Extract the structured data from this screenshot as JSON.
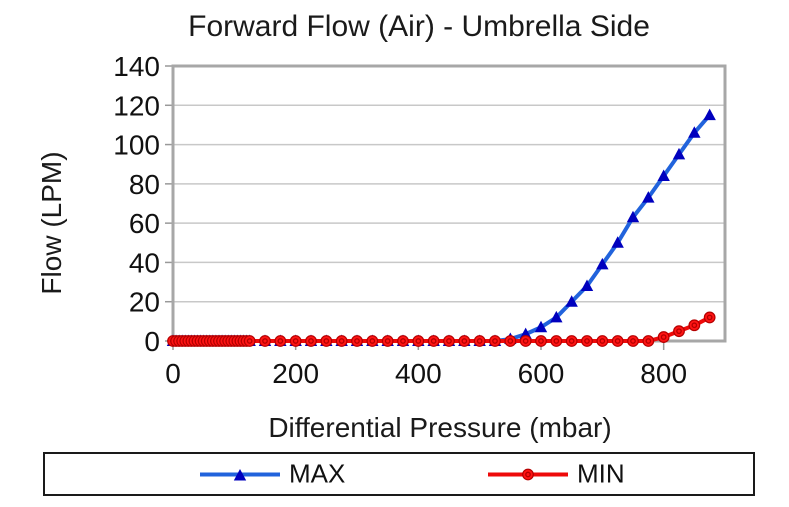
{
  "chart_data": {
    "type": "line",
    "title": "Forward Flow (Air) - Umbrella Side",
    "xlabel": "Differential Pressure (mbar)",
    "ylabel": "Flow (LPM)",
    "xlim": [
      0,
      900
    ],
    "ylim": [
      0,
      140
    ],
    "x_ticks": [
      0,
      200,
      400,
      600,
      800
    ],
    "y_ticks": [
      0,
      20,
      40,
      60,
      80,
      100,
      120,
      140
    ],
    "grid": "horizontal-only",
    "legend_position": "bottom-boxed",
    "colors": {
      "grid": "#C8C8C8",
      "plot_border": "#A7A7A7",
      "tick": "#999999",
      "text": "#111111",
      "legend_border": "#1A1A1A",
      "max_line": "#2163DC",
      "max_marker": "#0000BE",
      "min_line": "#EE0A0A",
      "min_marker": "#FF1414",
      "min_marker_ring": "#B40000"
    },
    "series": [
      {
        "name": "MAX",
        "marker": "triangle-up",
        "points": [
          [
            0,
            0
          ],
          [
            5,
            0
          ],
          [
            10,
            0
          ],
          [
            15,
            0
          ],
          [
            20,
            0
          ],
          [
            25,
            0
          ],
          [
            30,
            0
          ],
          [
            35,
            0
          ],
          [
            40,
            0
          ],
          [
            45,
            0
          ],
          [
            50,
            0
          ],
          [
            55,
            0
          ],
          [
            60,
            0
          ],
          [
            65,
            0
          ],
          [
            70,
            0
          ],
          [
            75,
            0
          ],
          [
            80,
            0
          ],
          [
            85,
            0
          ],
          [
            90,
            0
          ],
          [
            95,
            0
          ],
          [
            100,
            0
          ],
          [
            105,
            0
          ],
          [
            110,
            0
          ],
          [
            115,
            0
          ],
          [
            120,
            0
          ],
          [
            125,
            0
          ],
          [
            150,
            0
          ],
          [
            175,
            0
          ],
          [
            200,
            0
          ],
          [
            225,
            0
          ],
          [
            250,
            0
          ],
          [
            275,
            0
          ],
          [
            300,
            0
          ],
          [
            325,
            0
          ],
          [
            350,
            0
          ],
          [
            375,
            0
          ],
          [
            400,
            0
          ],
          [
            425,
            0
          ],
          [
            450,
            0
          ],
          [
            475,
            0
          ],
          [
            500,
            0
          ],
          [
            525,
            0
          ],
          [
            550,
            1
          ],
          [
            575,
            3.5
          ],
          [
            600,
            7
          ],
          [
            625,
            12
          ],
          [
            650,
            20
          ],
          [
            675,
            28
          ],
          [
            700,
            39
          ],
          [
            725,
            50
          ],
          [
            750,
            63
          ],
          [
            775,
            73
          ],
          [
            800,
            84
          ],
          [
            825,
            95
          ],
          [
            850,
            106
          ],
          [
            875,
            115
          ]
        ]
      },
      {
        "name": "MIN",
        "marker": "circle",
        "points": [
          [
            0,
            0
          ],
          [
            5,
            0
          ],
          [
            10,
            0
          ],
          [
            15,
            0
          ],
          [
            20,
            0
          ],
          [
            25,
            0
          ],
          [
            30,
            0
          ],
          [
            35,
            0
          ],
          [
            40,
            0
          ],
          [
            45,
            0
          ],
          [
            50,
            0
          ],
          [
            55,
            0
          ],
          [
            60,
            0
          ],
          [
            65,
            0
          ],
          [
            70,
            0
          ],
          [
            75,
            0
          ],
          [
            80,
            0
          ],
          [
            85,
            0
          ],
          [
            90,
            0
          ],
          [
            95,
            0
          ],
          [
            100,
            0
          ],
          [
            105,
            0
          ],
          [
            110,
            0
          ],
          [
            115,
            0
          ],
          [
            120,
            0
          ],
          [
            125,
            0
          ],
          [
            150,
            0
          ],
          [
            175,
            0
          ],
          [
            200,
            0
          ],
          [
            225,
            0
          ],
          [
            250,
            0
          ],
          [
            275,
            0
          ],
          [
            300,
            0
          ],
          [
            325,
            0
          ],
          [
            350,
            0
          ],
          [
            375,
            0
          ],
          [
            400,
            0
          ],
          [
            425,
            0
          ],
          [
            450,
            0
          ],
          [
            475,
            0
          ],
          [
            500,
            0
          ],
          [
            525,
            0
          ],
          [
            550,
            0
          ],
          [
            575,
            0
          ],
          [
            600,
            0
          ],
          [
            625,
            0
          ],
          [
            650,
            0
          ],
          [
            675,
            0
          ],
          [
            700,
            0
          ],
          [
            725,
            0
          ],
          [
            750,
            0
          ],
          [
            775,
            0
          ],
          [
            800,
            2
          ],
          [
            825,
            5
          ],
          [
            850,
            8
          ],
          [
            875,
            12
          ]
        ]
      }
    ]
  }
}
